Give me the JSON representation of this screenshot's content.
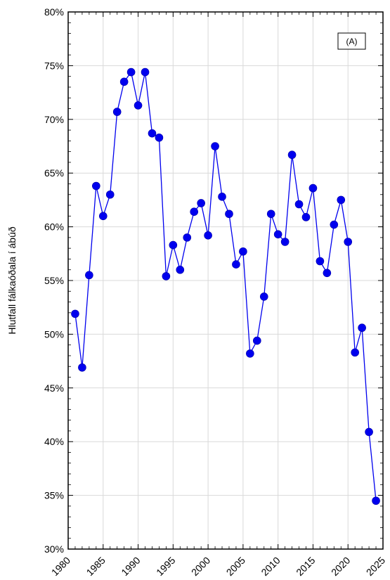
{
  "chart_data": {
    "type": "line",
    "title": "",
    "xlabel": "",
    "ylabel": "Hlutfall fálkaóðala í ábúð",
    "panel_tag": "(A)",
    "xlim": [
      1980,
      2025
    ],
    "ylim": [
      0.3,
      0.8
    ],
    "x_ticks": [
      1980,
      1985,
      1990,
      1995,
      2000,
      2005,
      2010,
      2015,
      2020,
      2025
    ],
    "x_tick_labels": [
      "1980",
      "1985",
      "1990",
      "1995",
      "2000",
      "2005",
      "2010",
      "2015",
      "2020",
      "2025"
    ],
    "y_ticks": [
      0.3,
      0.35,
      0.4,
      0.45,
      0.5,
      0.55,
      0.6,
      0.65,
      0.7,
      0.75,
      0.8
    ],
    "y_tick_labels": [
      "30%",
      "35%",
      "40%",
      "45%",
      "50%",
      "55%",
      "60%",
      "65%",
      "70%",
      "75%",
      "80%"
    ],
    "grid": true,
    "series_color": "#0000ee",
    "x": [
      1981,
      1982,
      1983,
      1984,
      1985,
      1986,
      1987,
      1988,
      1989,
      1990,
      1991,
      1992,
      1993,
      1994,
      1995,
      1996,
      1997,
      1998,
      1999,
      2000,
      2001,
      2002,
      2003,
      2004,
      2005,
      2006,
      2007,
      2008,
      2009,
      2010,
      2011,
      2012,
      2013,
      2014,
      2015,
      2016,
      2017,
      2018,
      2019,
      2020,
      2021,
      2022,
      2023,
      2024
    ],
    "y": [
      0.519,
      0.469,
      0.555,
      0.638,
      0.61,
      0.63,
      0.707,
      0.735,
      0.744,
      0.713,
      0.744,
      0.687,
      0.683,
      0.554,
      0.583,
      0.56,
      0.59,
      0.614,
      0.622,
      0.592,
      0.675,
      0.628,
      0.612,
      0.565,
      0.577,
      0.482,
      0.494,
      0.535,
      0.612,
      0.593,
      0.586,
      0.667,
      0.621,
      0.609,
      0.636,
      0.568,
      0.557,
      0.602,
      0.625,
      0.586,
      0.483,
      0.506,
      0.409,
      0.345
    ]
  }
}
